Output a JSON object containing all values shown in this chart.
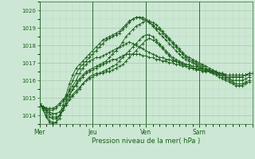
{
  "xlabel": "Pression niveau de la mer( hPa )",
  "bg_color": "#cce8d4",
  "plot_bg_color": "#cce8d4",
  "grid_major_color": "#a8c8a8",
  "grid_minor_color": "#b8d8b8",
  "line_color": "#1a5c1a",
  "ylim": [
    1013.5,
    1020.5
  ],
  "yticks": [
    1014,
    1015,
    1016,
    1017,
    1018,
    1019,
    1020
  ],
  "xlim": [
    0,
    192
  ],
  "day_ticks": [
    0,
    48,
    96,
    144
  ],
  "day_labels": [
    "Mer",
    "Jeu",
    "Ven",
    "Sam"
  ],
  "series": [
    {
      "x": [
        0,
        3,
        6,
        9,
        12,
        15,
        18,
        21,
        24,
        27,
        30,
        33,
        36,
        39,
        42,
        45,
        48,
        51,
        54,
        57,
        60,
        63,
        66,
        69,
        72,
        75,
        78,
        81,
        84,
        87,
        90,
        93,
        96,
        99,
        102,
        105,
        108,
        111,
        114,
        117,
        120,
        123,
        126,
        129,
        132,
        135,
        138,
        141,
        144,
        147,
        150,
        153,
        156,
        159,
        162,
        165,
        168,
        171,
        174,
        177,
        180,
        183,
        186,
        189
      ],
      "y": [
        1014.7,
        1014.5,
        1014.3,
        1014.1,
        1013.9,
        1013.9,
        1014.0,
        1014.3,
        1014.7,
        1015.1,
        1015.5,
        1015.8,
        1016.1,
        1016.3,
        1016.5,
        1016.6,
        1016.7,
        1016.8,
        1016.9,
        1017.0,
        1017.1,
        1017.3,
        1017.5,
        1017.7,
        1017.9,
        1018.2,
        1018.5,
        1018.7,
        1018.9,
        1019.1,
        1019.2,
        1019.3,
        1019.4,
        1019.4,
        1019.3,
        1019.2,
        1019.0,
        1018.8,
        1018.6,
        1018.4,
        1018.2,
        1018.0,
        1017.8,
        1017.6,
        1017.4,
        1017.3,
        1017.2,
        1017.1,
        1017.0,
        1016.9,
        1016.8,
        1016.7,
        1016.6,
        1016.5,
        1016.4,
        1016.3,
        1016.2,
        1016.1,
        1016.0,
        1016.0,
        1016.0,
        1016.0,
        1016.1,
        1016.2
      ]
    },
    {
      "x": [
        0,
        3,
        6,
        9,
        12,
        15,
        18,
        21,
        24,
        27,
        30,
        33,
        36,
        39,
        42,
        45,
        48,
        51,
        54,
        57,
        60,
        63,
        66,
        69,
        72,
        75,
        78,
        81,
        84,
        87,
        90,
        93,
        96,
        99,
        102,
        105,
        108,
        111,
        114,
        117,
        120,
        123,
        126,
        129,
        132,
        135,
        138,
        141,
        144,
        147,
        150,
        153,
        156,
        159,
        162,
        165,
        168,
        171,
        174,
        177,
        180,
        183,
        186,
        189
      ],
      "y": [
        1014.7,
        1014.4,
        1014.0,
        1013.7,
        1013.6,
        1013.6,
        1013.8,
        1014.3,
        1014.9,
        1015.5,
        1016.0,
        1016.4,
        1016.7,
        1016.9,
        1017.1,
        1017.3,
        1017.5,
        1017.7,
        1017.9,
        1018.1,
        1018.3,
        1018.4,
        1018.5,
        1018.6,
        1018.7,
        1018.9,
        1019.1,
        1019.3,
        1019.5,
        1019.6,
        1019.6,
        1019.6,
        1019.5,
        1019.3,
        1019.2,
        1019.0,
        1018.9,
        1018.7,
        1018.5,
        1018.3,
        1018.1,
        1017.9,
        1017.7,
        1017.5,
        1017.3,
        1017.2,
        1017.1,
        1017.0,
        1016.9,
        1016.8,
        1016.7,
        1016.6,
        1016.5,
        1016.4,
        1016.3,
        1016.2,
        1016.1,
        1016.0,
        1015.9,
        1015.8,
        1015.8,
        1015.8,
        1015.9,
        1016.0
      ]
    },
    {
      "x": [
        0,
        3,
        6,
        9,
        12,
        15,
        18,
        21,
        24,
        27,
        30,
        33,
        36,
        39,
        42,
        45,
        48,
        51,
        54,
        57,
        60,
        63,
        66,
        69,
        72,
        75,
        78,
        81,
        84,
        87,
        90,
        93,
        96,
        99,
        102,
        105,
        108,
        111,
        114,
        117,
        120,
        123,
        126,
        129,
        132,
        135,
        138,
        141,
        144,
        147,
        150,
        153,
        156,
        159,
        162,
        165,
        168,
        171,
        174,
        177,
        180,
        183,
        186,
        189
      ],
      "y": [
        1014.7,
        1014.3,
        1013.9,
        1013.6,
        1013.5,
        1013.6,
        1014.0,
        1014.6,
        1015.2,
        1015.8,
        1016.3,
        1016.7,
        1016.9,
        1017.1,
        1017.3,
        1017.5,
        1017.7,
        1017.9,
        1018.1,
        1018.3,
        1018.4,
        1018.5,
        1018.6,
        1018.7,
        1018.8,
        1019.0,
        1019.2,
        1019.4,
        1019.5,
        1019.6,
        1019.6,
        1019.5,
        1019.4,
        1019.3,
        1019.1,
        1018.9,
        1018.7,
        1018.5,
        1018.3,
        1018.1,
        1017.9,
        1017.7,
        1017.5,
        1017.3,
        1017.2,
        1017.1,
        1017.0,
        1016.9,
        1016.8,
        1016.7,
        1016.6,
        1016.5,
        1016.4,
        1016.3,
        1016.2,
        1016.1,
        1016.0,
        1015.9,
        1015.8,
        1015.7,
        1015.7,
        1015.7,
        1015.8,
        1015.9
      ]
    },
    {
      "x": [
        0,
        3,
        6,
        9,
        12,
        15,
        18,
        21,
        24,
        27,
        30,
        33,
        36,
        39,
        42,
        45,
        48,
        51,
        54,
        57,
        60,
        63,
        66,
        69,
        72,
        75,
        78,
        81,
        84,
        87,
        90,
        93,
        96,
        99,
        102,
        105,
        108,
        111,
        114,
        117,
        120,
        123,
        126,
        129,
        132,
        135,
        138,
        141,
        144,
        147,
        150,
        153,
        156,
        159,
        162,
        165,
        168,
        171,
        174,
        177,
        180,
        183,
        186,
        189
      ],
      "y": [
        1014.6,
        1014.4,
        1014.2,
        1013.9,
        1013.8,
        1013.8,
        1014.0,
        1014.3,
        1014.6,
        1014.9,
        1015.2,
        1015.4,
        1015.6,
        1015.8,
        1016.0,
        1016.1,
        1016.2,
        1016.3,
        1016.4,
        1016.5,
        1016.6,
        1016.7,
        1016.8,
        1016.9,
        1017.1,
        1017.3,
        1017.5,
        1017.7,
        1017.9,
        1018.1,
        1018.3,
        1018.5,
        1018.6,
        1018.6,
        1018.5,
        1018.3,
        1018.1,
        1017.9,
        1017.7,
        1017.5,
        1017.3,
        1017.2,
        1017.1,
        1017.0,
        1016.9,
        1016.9,
        1016.8,
        1016.8,
        1016.7,
        1016.7,
        1016.6,
        1016.6,
        1016.5,
        1016.5,
        1016.4,
        1016.4,
        1016.3,
        1016.3,
        1016.3,
        1016.3,
        1016.3,
        1016.3,
        1016.3,
        1016.4
      ]
    },
    {
      "x": [
        0,
        3,
        6,
        9,
        12,
        15,
        18,
        21,
        24,
        27,
        30,
        33,
        36,
        39,
        42,
        45,
        48,
        51,
        54,
        57,
        60,
        63,
        66,
        69,
        72,
        75,
        78,
        81,
        84,
        87,
        90,
        93,
        96,
        99,
        102,
        105,
        108,
        111,
        114,
        117,
        120,
        123,
        126,
        129,
        132,
        135,
        138,
        141,
        144,
        147,
        150,
        153,
        156,
        159,
        162,
        165,
        168,
        171,
        174,
        177,
        180,
        183,
        186,
        189
      ],
      "y": [
        1014.6,
        1014.5,
        1014.3,
        1014.2,
        1014.1,
        1014.1,
        1014.2,
        1014.4,
        1014.6,
        1014.9,
        1015.1,
        1015.3,
        1015.5,
        1015.8,
        1016.0,
        1016.2,
        1016.3,
        1016.4,
        1016.4,
        1016.4,
        1016.5,
        1016.5,
        1016.6,
        1016.7,
        1016.8,
        1016.9,
        1017.1,
        1017.3,
        1017.5,
        1017.7,
        1017.9,
        1018.1,
        1018.3,
        1018.4,
        1018.3,
        1018.2,
        1018.0,
        1017.8,
        1017.6,
        1017.4,
        1017.2,
        1017.1,
        1017.0,
        1016.9,
        1016.8,
        1016.8,
        1016.7,
        1016.7,
        1016.6,
        1016.6,
        1016.5,
        1016.5,
        1016.4,
        1016.4,
        1016.3,
        1016.3,
        1016.2,
        1016.2,
        1016.2,
        1016.2,
        1016.2,
        1016.2,
        1016.3,
        1016.3
      ]
    },
    {
      "x": [
        0,
        3,
        6,
        9,
        12,
        15,
        18,
        21,
        24,
        27,
        30,
        33,
        36,
        39,
        42,
        45,
        48,
        51,
        54,
        57,
        60,
        63,
        66,
        69,
        72,
        75,
        78,
        81,
        84,
        87,
        90,
        93,
        96,
        99,
        102,
        105,
        108,
        111,
        114,
        117,
        120,
        123,
        126,
        129,
        132,
        135,
        138,
        141,
        144,
        147,
        150,
        153,
        156,
        159,
        162,
        165,
        168,
        171,
        174,
        177,
        180,
        183,
        186,
        189
      ],
      "y": [
        1014.6,
        1014.5,
        1014.4,
        1014.4,
        1014.4,
        1014.5,
        1014.7,
        1014.9,
        1015.1,
        1015.4,
        1015.7,
        1016.0,
        1016.4,
        1016.7,
        1016.9,
        1017.1,
        1017.2,
        1017.3,
        1017.3,
        1017.4,
        1017.5,
        1017.6,
        1017.7,
        1017.8,
        1017.9,
        1018.0,
        1018.1,
        1018.2,
        1018.1,
        1018.0,
        1017.9,
        1017.8,
        1017.7,
        1017.6,
        1017.5,
        1017.4,
        1017.3,
        1017.3,
        1017.2,
        1017.2,
        1017.1,
        1017.1,
        1017.0,
        1017.0,
        1016.9,
        1016.9,
        1016.8,
        1016.8,
        1016.7,
        1016.7,
        1016.6,
        1016.6,
        1016.5,
        1016.5,
        1016.4,
        1016.4,
        1016.3,
        1016.3,
        1016.3,
        1016.3,
        1016.3,
        1016.3,
        1016.3,
        1016.4
      ]
    },
    {
      "x": [
        0,
        3,
        6,
        9,
        12,
        15,
        18,
        21,
        24,
        27,
        30,
        33,
        36,
        39,
        42,
        45,
        48,
        51,
        54,
        57,
        60,
        63,
        66,
        69,
        72,
        75,
        78,
        81,
        84,
        87,
        90,
        93,
        96,
        99,
        102,
        105,
        108,
        111,
        114,
        117,
        120,
        123,
        126,
        129,
        132,
        135,
        138,
        141,
        144,
        147,
        150,
        153,
        156,
        159,
        162,
        165,
        168,
        171,
        174,
        177,
        180,
        183,
        186,
        189,
        192
      ],
      "y": [
        1014.6,
        1014.5,
        1014.4,
        1014.3,
        1014.3,
        1014.4,
        1014.6,
        1014.8,
        1015.0,
        1015.2,
        1015.5,
        1015.7,
        1016.0,
        1016.2,
        1016.4,
        1016.5,
        1016.6,
        1016.7,
        1016.8,
        1016.9,
        1017.0,
        1017.1,
        1017.2,
        1017.2,
        1017.3,
        1017.4,
        1017.5,
        1017.5,
        1017.5,
        1017.5,
        1017.5,
        1017.4,
        1017.4,
        1017.3,
        1017.3,
        1017.2,
        1017.2,
        1017.1,
        1017.1,
        1017.0,
        1017.0,
        1016.9,
        1016.9,
        1016.8,
        1016.8,
        1016.7,
        1016.7,
        1016.6,
        1016.6,
        1016.5,
        1016.5,
        1016.5,
        1016.4,
        1016.4,
        1016.4,
        1016.4,
        1016.3,
        1016.3,
        1016.3,
        1016.3,
        1016.3,
        1016.3,
        1016.3,
        1016.4,
        1016.4
      ]
    }
  ]
}
